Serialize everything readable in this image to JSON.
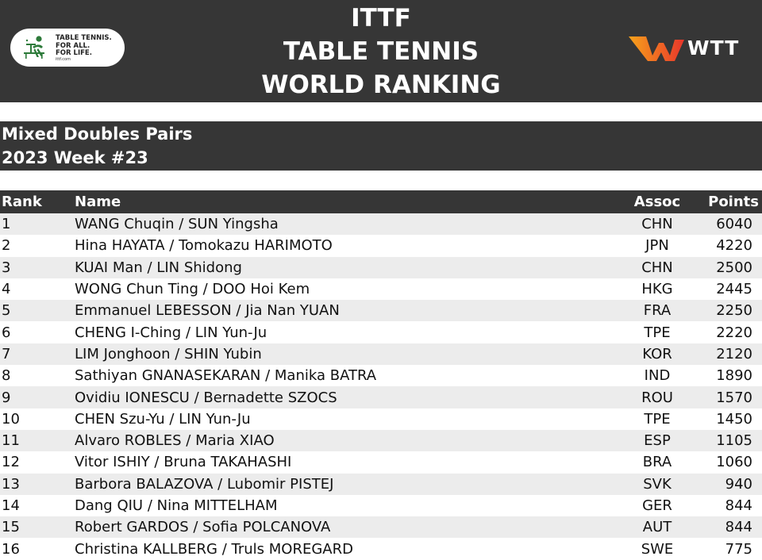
{
  "header": {
    "title_lines": [
      "ITTF",
      "TABLE TENNIS",
      "WORLD RANKING"
    ],
    "ittf_logo": {
      "lines": [
        "TABLE TENNIS.",
        "FOR ALL.",
        "FOR LIFE."
      ],
      "url": "ittf.com"
    },
    "wtt_logo": {
      "text": "WTT",
      "colors": [
        "#e8362b",
        "#f7a21b"
      ]
    }
  },
  "subheader": {
    "category": "Mixed Doubles Pairs",
    "week": "2023 Week #23"
  },
  "table": {
    "columns": {
      "rank": "Rank",
      "name": "Name",
      "assoc": "Assoc",
      "points": "Points"
    },
    "rows": [
      {
        "rank": "1",
        "name": "WANG Chuqin / SUN Yingsha",
        "assoc": "CHN",
        "points": "6040"
      },
      {
        "rank": "2",
        "name": "Hina HAYATA / Tomokazu HARIMOTO",
        "assoc": "JPN",
        "points": "4220"
      },
      {
        "rank": "3",
        "name": "KUAI Man / LIN Shidong",
        "assoc": "CHN",
        "points": "2500"
      },
      {
        "rank": "4",
        "name": "WONG Chun Ting / DOO Hoi Kem",
        "assoc": "HKG",
        "points": "2445"
      },
      {
        "rank": "5",
        "name": "Emmanuel LEBESSON / Jia Nan YUAN",
        "assoc": "FRA",
        "points": "2250"
      },
      {
        "rank": "6",
        "name": "CHENG I-Ching / LIN Yun-Ju",
        "assoc": "TPE",
        "points": "2220"
      },
      {
        "rank": "7",
        "name": "LIM Jonghoon / SHIN Yubin",
        "assoc": "KOR",
        "points": "2120"
      },
      {
        "rank": "8",
        "name": "Sathiyan GNANASEKARAN / Manika BATRA",
        "assoc": "IND",
        "points": "1890"
      },
      {
        "rank": "9",
        "name": "Ovidiu IONESCU / Bernadette SZOCS",
        "assoc": "ROU",
        "points": "1570"
      },
      {
        "rank": "10",
        "name": "CHEN Szu-Yu / LIN Yun-Ju",
        "assoc": "TPE",
        "points": "1450"
      },
      {
        "rank": "11",
        "name": "Alvaro ROBLES / Maria XIAO",
        "assoc": "ESP",
        "points": "1105"
      },
      {
        "rank": "12",
        "name": "Vitor ISHIY / Bruna TAKAHASHI",
        "assoc": "BRA",
        "points": "1060"
      },
      {
        "rank": "13",
        "name": "Barbora BALAZOVA / Lubomir PISTEJ",
        "assoc": "SVK",
        "points": "940"
      },
      {
        "rank": "14",
        "name": "Dang QIU / Nina MITTELHAM",
        "assoc": "GER",
        "points": "844"
      },
      {
        "rank": "15",
        "name": "Robert GARDOS / Sofia POLCANOVA",
        "assoc": "AUT",
        "points": "844"
      },
      {
        "rank": "16",
        "name": "Christina KALLBERG / Truls MOREGARD",
        "assoc": "SWE",
        "points": "775"
      }
    ]
  }
}
